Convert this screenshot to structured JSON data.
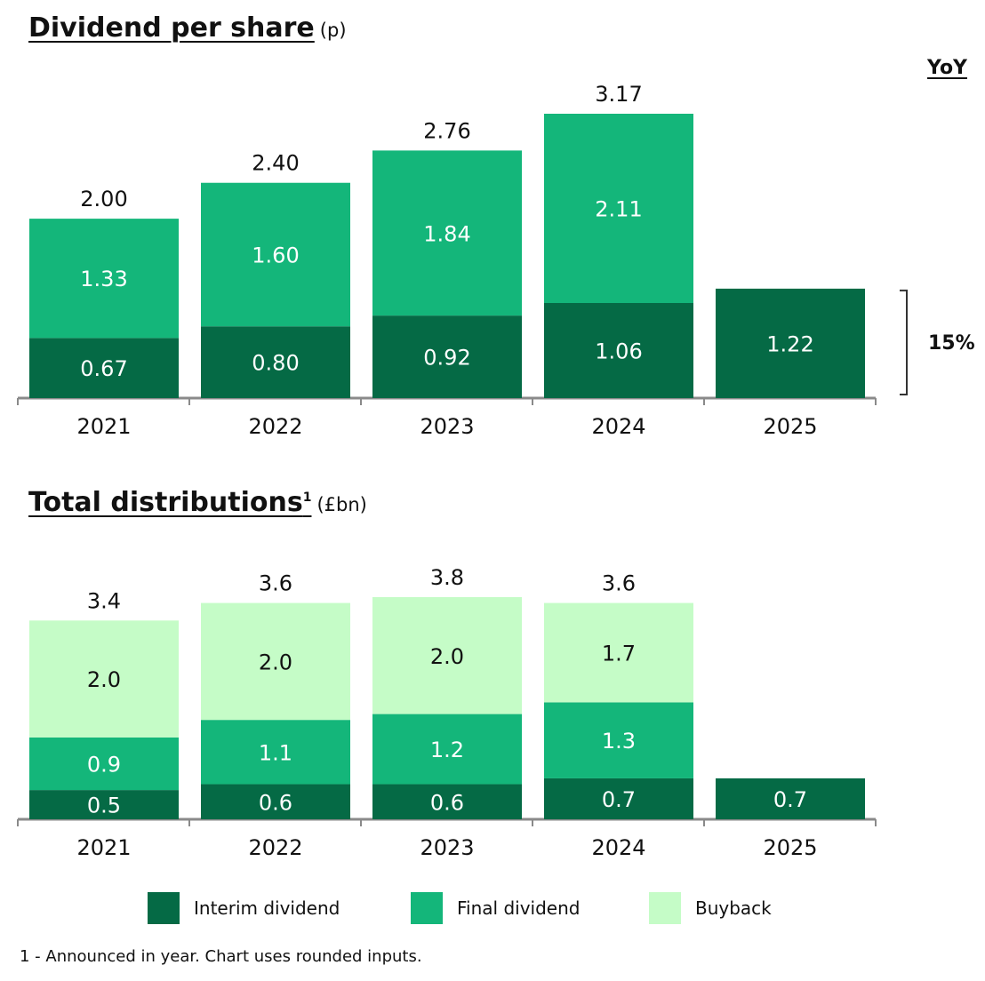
{
  "colors": {
    "interim": "#056a45",
    "final": "#14b67a",
    "buyback": "#c5fcc7",
    "axis": "#8a8a8a"
  },
  "dps": {
    "title": "Dividend per share",
    "unit": "(p)",
    "yoy_label": "YoY",
    "yoy_value": "15%"
  },
  "dist": {
    "title": "Total distributions",
    "sup": "1",
    "unit": "(£bn)"
  },
  "legend": [
    {
      "key": "interim",
      "label": "Interim dividend"
    },
    {
      "key": "final",
      "label": "Final dividend"
    },
    {
      "key": "buyback",
      "label": "Buyback"
    }
  ],
  "footnote": "1 - Announced in year. Chart uses rounded inputs.",
  "chart_data": [
    {
      "type": "bar",
      "stacked": true,
      "title": "Dividend per share (p)",
      "categories": [
        "2021",
        "2022",
        "2023",
        "2024",
        "2025"
      ],
      "series": [
        {
          "name": "Interim dividend",
          "key": "interim",
          "values": [
            0.67,
            0.8,
            0.92,
            1.06,
            1.22
          ],
          "labels": [
            "0.67",
            "0.80",
            "0.92",
            "1.06",
            "1.22"
          ]
        },
        {
          "name": "Final dividend",
          "key": "final",
          "values": [
            1.33,
            1.6,
            1.84,
            2.11,
            null
          ],
          "labels": [
            "1.33",
            "1.60",
            "1.84",
            "2.11",
            null
          ]
        }
      ],
      "totals": [
        2.0,
        2.4,
        2.76,
        3.17,
        null
      ],
      "total_labels": [
        "2.00",
        "2.40",
        "2.76",
        "3.17",
        null
      ],
      "ylim": [
        0,
        3.17
      ],
      "yoy": {
        "from": "2024",
        "to": "2025",
        "label": "15%"
      }
    },
    {
      "type": "bar",
      "stacked": true,
      "title": "Total distributions (£bn)",
      "categories": [
        "2021",
        "2022",
        "2023",
        "2024",
        "2025"
      ],
      "series": [
        {
          "name": "Interim dividend",
          "key": "interim",
          "values": [
            0.5,
            0.6,
            0.6,
            0.7,
            0.7
          ],
          "labels": [
            "0.5",
            "0.6",
            "0.6",
            "0.7",
            "0.7"
          ]
        },
        {
          "name": "Final dividend",
          "key": "final",
          "values": [
            0.9,
            1.1,
            1.2,
            1.3,
            null
          ],
          "labels": [
            "0.9",
            "1.1",
            "1.2",
            "1.3",
            null
          ]
        },
        {
          "name": "Buyback",
          "key": "buyback",
          "values": [
            2.0,
            2.0,
            2.0,
            1.7,
            null
          ],
          "labels": [
            "2.0",
            "2.0",
            "2.0",
            "1.7",
            null
          ]
        }
      ],
      "totals": [
        3.4,
        3.6,
        3.8,
        3.6,
        null
      ],
      "total_labels": [
        "3.4",
        "3.6",
        "3.8",
        "3.6",
        null
      ],
      "ylim": [
        0,
        3.8
      ]
    }
  ]
}
